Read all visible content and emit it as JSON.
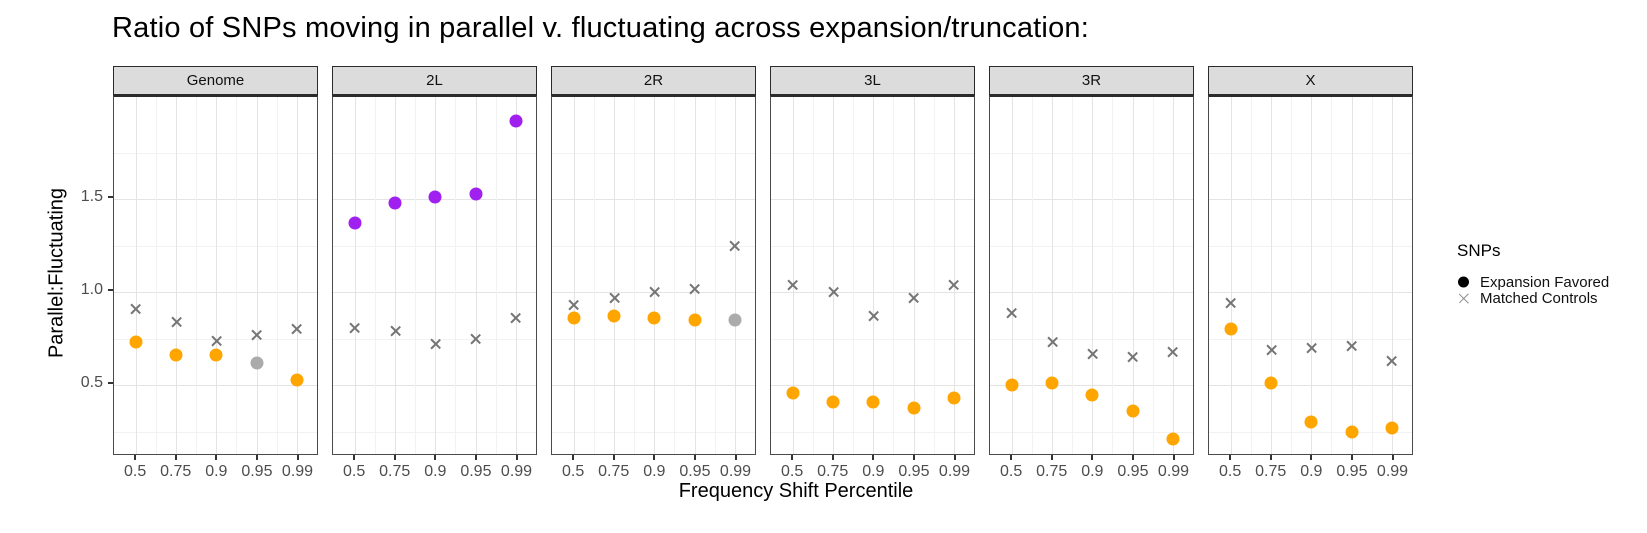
{
  "title": "Ratio of SNPs moving in parallel v. fluctuating across expansion/truncation:",
  "axes": {
    "y_label": "Parallel:Fluctuating",
    "x_label": "Frequency Shift Percentile",
    "y_ticks": [
      {
        "label": "0.5",
        "value": 0.5
      },
      {
        "label": "1.0",
        "value": 1.0
      },
      {
        "label": "1.5",
        "value": 1.5
      }
    ],
    "x_ticks": [
      "0.5",
      "0.75",
      "0.9",
      "0.95",
      "0.99"
    ]
  },
  "legend": {
    "title": "SNPs",
    "items": [
      {
        "label": "Expansion Favored",
        "symbol": "filled-circle",
        "color": "#000000"
      },
      {
        "label": "Matched Controls",
        "symbol": "x-cross",
        "color": "#8c8c8c"
      }
    ]
  },
  "colors": {
    "expansion_orange": "#FFA500",
    "expansion_purple": "#A020F0",
    "nonsignificant_gray": "#ABABAB",
    "matched_controls_x": "#757575",
    "strip_background": "#dcdcdc",
    "gridline_major": "#e4e4e4",
    "gridline_minor": "#f2f2f2"
  },
  "chart_data": {
    "type": "scatter",
    "title": "Ratio of SNPs moving in parallel v. fluctuating across expansion/truncation:",
    "xlabel": "Frequency Shift Percentile",
    "ylabel": "Parallel:Fluctuating",
    "x_categories": [
      0.5,
      0.75,
      0.9,
      0.95,
      0.99
    ],
    "ylim": [
      0.13,
      2.05
    ],
    "y_major_gridlines": [
      0.5,
      1.0,
      1.5
    ],
    "y_minor_gridlines": [
      0.25,
      0.75,
      1.25,
      1.75
    ],
    "grid": true,
    "legend_position": "right",
    "facets": [
      {
        "name": "Genome",
        "series": [
          {
            "name": "Expansion Favored",
            "marker": "circle",
            "values": [
              0.73,
              0.66,
              0.66,
              0.62,
              0.53
            ],
            "point_colors": [
              "#FFA500",
              "#FFA500",
              "#FFA500",
              "#ABABAB",
              "#FFA500"
            ]
          },
          {
            "name": "Matched Controls",
            "marker": "x",
            "values": [
              0.91,
              0.84,
              0.74,
              0.77,
              0.8
            ],
            "point_colors": [
              "#757575",
              "#757575",
              "#757575",
              "#757575",
              "#757575"
            ]
          }
        ]
      },
      {
        "name": "2L",
        "series": [
          {
            "name": "Expansion Favored",
            "marker": "circle",
            "values": [
              1.37,
              1.48,
              1.51,
              1.53,
              1.92
            ],
            "point_colors": [
              "#A020F0",
              "#A020F0",
              "#A020F0",
              "#A020F0",
              "#A020F0"
            ]
          },
          {
            "name": "Matched Controls",
            "marker": "x",
            "values": [
              0.81,
              0.79,
              0.72,
              0.75,
              0.86
            ],
            "point_colors": [
              "#757575",
              "#757575",
              "#757575",
              "#757575",
              "#757575"
            ]
          }
        ]
      },
      {
        "name": "2R",
        "series": [
          {
            "name": "Expansion Favored",
            "marker": "circle",
            "values": [
              0.86,
              0.87,
              0.86,
              0.85,
              0.85
            ],
            "point_colors": [
              "#FFA500",
              "#FFA500",
              "#FFA500",
              "#FFA500",
              "#ABABAB"
            ]
          },
          {
            "name": "Matched Controls",
            "marker": "x",
            "values": [
              0.93,
              0.97,
              1.0,
              1.02,
              1.25
            ],
            "point_colors": [
              "#757575",
              "#757575",
              "#757575",
              "#757575",
              "#757575"
            ]
          }
        ]
      },
      {
        "name": "3L",
        "series": [
          {
            "name": "Expansion Favored",
            "marker": "circle",
            "values": [
              0.46,
              0.41,
              0.41,
              0.38,
              0.43
            ],
            "point_colors": [
              "#FFA500",
              "#FFA500",
              "#FFA500",
              "#FFA500",
              "#FFA500"
            ]
          },
          {
            "name": "Matched Controls",
            "marker": "x",
            "values": [
              1.04,
              1.0,
              0.87,
              0.97,
              1.04
            ],
            "point_colors": [
              "#757575",
              "#757575",
              "#757575",
              "#757575",
              "#757575"
            ]
          }
        ]
      },
      {
        "name": "3R",
        "series": [
          {
            "name": "Expansion Favored",
            "marker": "circle",
            "values": [
              0.5,
              0.51,
              0.45,
              0.36,
              0.21
            ],
            "point_colors": [
              "#FFA500",
              "#FFA500",
              "#FFA500",
              "#FFA500",
              "#FFA500"
            ]
          },
          {
            "name": "Matched Controls",
            "marker": "x",
            "values": [
              0.89,
              0.73,
              0.67,
              0.65,
              0.68
            ],
            "point_colors": [
              "#757575",
              "#757575",
              "#757575",
              "#757575",
              "#757575"
            ]
          }
        ]
      },
      {
        "name": "X",
        "series": [
          {
            "name": "Expansion Favored",
            "marker": "circle",
            "values": [
              0.8,
              0.51,
              0.3,
              0.25,
              0.27
            ],
            "point_colors": [
              "#FFA500",
              "#FFA500",
              "#FFA500",
              "#FFA500",
              "#FFA500"
            ]
          },
          {
            "name": "Matched Controls",
            "marker": "x",
            "values": [
              0.94,
              0.69,
              0.7,
              0.71,
              0.63
            ],
            "point_colors": [
              "#757575",
              "#757575",
              "#757575",
              "#757575",
              "#757575"
            ]
          }
        ]
      }
    ]
  }
}
